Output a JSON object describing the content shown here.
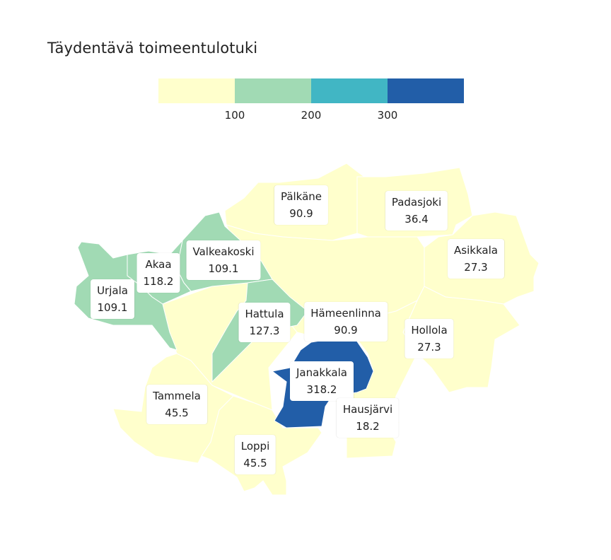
{
  "title": "Täydentävä toimeentulotuki",
  "legend": {
    "colors": [
      "#ffffcc",
      "#a1dab4",
      "#41b6c4",
      "#225ea8"
    ],
    "ticks": [
      "100",
      "200",
      "300"
    ]
  },
  "municipalities": [
    {
      "name": "Pälkäne",
      "value": "90.9",
      "color": "#ffffcc"
    },
    {
      "name": "Padasjoki",
      "value": "36.4",
      "color": "#ffffcc"
    },
    {
      "name": "Asikkala",
      "value": "27.3",
      "color": "#ffffcc"
    },
    {
      "name": "Valkeakoski",
      "value": "109.1",
      "color": "#a1dab4"
    },
    {
      "name": "Akaa",
      "value": "118.2",
      "color": "#a1dab4"
    },
    {
      "name": "Urjala",
      "value": "109.1",
      "color": "#a1dab4"
    },
    {
      "name": "Hattula",
      "value": "127.3",
      "color": "#a1dab4"
    },
    {
      "name": "Hämeenlinna",
      "value": "90.9",
      "color": "#ffffcc"
    },
    {
      "name": "Hollola",
      "value": "27.3",
      "color": "#ffffcc"
    },
    {
      "name": "Janakkala",
      "value": "318.2",
      "color": "#225ea8"
    },
    {
      "name": "Tammela",
      "value": "45.5",
      "color": "#ffffcc"
    },
    {
      "name": "Hausjärvi",
      "value": "18.2",
      "color": "#ffffcc"
    },
    {
      "name": "Loppi",
      "value": "45.5",
      "color": "#ffffcc"
    }
  ]
}
